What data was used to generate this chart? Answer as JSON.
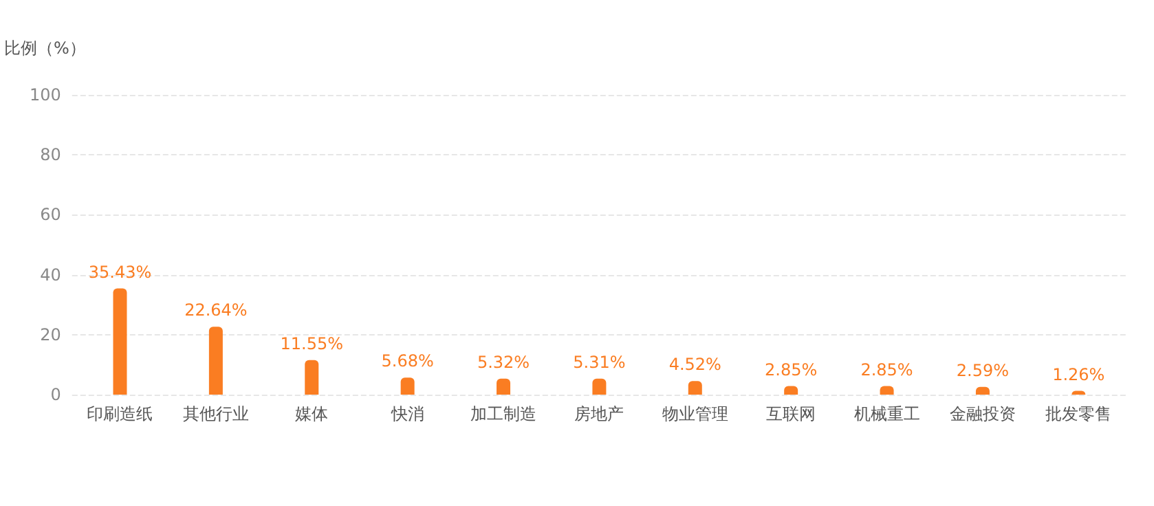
{
  "chart_data": {
    "type": "bar",
    "ylabel": "比例（%）",
    "categories": [
      "印刷造纸",
      "其他行业",
      "媒体",
      "快消",
      "加工制造",
      "房地产",
      "物业管理",
      "互联网",
      "机械重工",
      "金融投资",
      "批发零售"
    ],
    "values": [
      35.43,
      22.64,
      11.55,
      5.68,
      5.32,
      5.31,
      4.52,
      2.85,
      2.85,
      2.59,
      1.26
    ],
    "value_labels": [
      "35.43%",
      "22.64%",
      "11.55%",
      "5.68%",
      "5.32%",
      "5.31%",
      "4.52%",
      "2.85%",
      "2.85%",
      "2.59%",
      "1.26%"
    ],
    "color": "#fa7d22",
    "ylim": [
      0,
      100
    ],
    "yticks": [
      0,
      20,
      40,
      60,
      80,
      100
    ],
    "grid": "y"
  }
}
